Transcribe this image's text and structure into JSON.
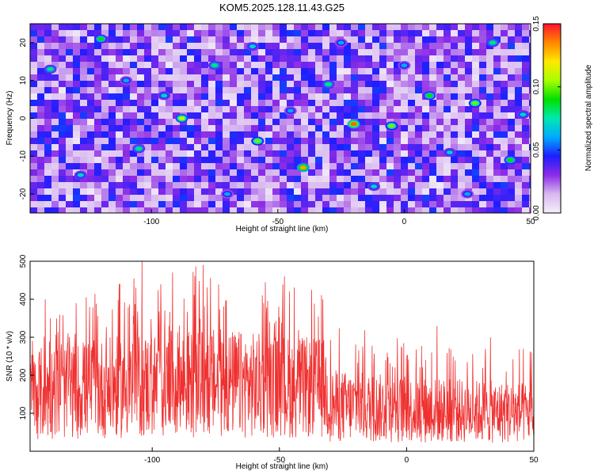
{
  "page_title": "KOM5.2025.128.11.43.G25",
  "chart_data": [
    {
      "type": "heatmap",
      "title": "KOM5.2025.128.11.43.G25",
      "xlabel": "Height of straight line (km)",
      "ylabel": "Frequency (Hz)",
      "xlim": [
        -148,
        50
      ],
      "ylim": [
        -25,
        25
      ],
      "xticks": [
        -100,
        -50,
        0,
        50
      ],
      "xtick_labels": [
        "-100",
        "-50",
        "0",
        "50"
      ],
      "yticks": [
        -20,
        -10,
        0,
        10,
        20
      ],
      "ytick_labels": [
        "-20",
        "-10",
        "0",
        "10",
        "20"
      ],
      "colorbar": {
        "label": "Normalized spectral amplitude",
        "range": [
          0.0,
          0.15
        ],
        "ticks": [
          0.0,
          0.05,
          0.1,
          0.15
        ],
        "tick_labels": [
          "0.00",
          "0.05",
          "0.10",
          "0.15"
        ],
        "colormap": [
          "#f4f0f8",
          "#d8b8f0",
          "#8c2be6",
          "#1e1eff",
          "#00aaff",
          "#00e8b0",
          "#00e000",
          "#a8ff00",
          "#ffe800",
          "#ff8800",
          "#ff1030"
        ]
      },
      "background_level": 0.025,
      "peaks": [
        {
          "x": -20,
          "y": -1.5,
          "v": 0.14
        },
        {
          "x": -40,
          "y": -13,
          "v": 0.13
        },
        {
          "x": -88,
          "y": 0,
          "v": 0.11
        },
        {
          "x": -5,
          "y": -2,
          "v": 0.1
        },
        {
          "x": 28,
          "y": 4,
          "v": 0.1
        },
        {
          "x": -58,
          "y": -6,
          "v": 0.1
        },
        {
          "x": 42,
          "y": -11,
          "v": 0.09
        },
        {
          "x": -120,
          "y": 21,
          "v": 0.09
        },
        {
          "x": 10,
          "y": 6,
          "v": 0.09
        },
        {
          "x": -140,
          "y": 13,
          "v": 0.08
        },
        {
          "x": -75,
          "y": 14,
          "v": 0.08
        },
        {
          "x": -105,
          "y": -8,
          "v": 0.08
        },
        {
          "x": -30,
          "y": 9,
          "v": 0.08
        },
        {
          "x": 35,
          "y": 20,
          "v": 0.08
        },
        {
          "x": -12,
          "y": -18,
          "v": 0.07
        },
        {
          "x": 47,
          "y": 1,
          "v": 0.07
        },
        {
          "x": -95,
          "y": 6,
          "v": 0.07
        },
        {
          "x": -60,
          "y": 19,
          "v": 0.07
        },
        {
          "x": 18,
          "y": -9,
          "v": 0.07
        },
        {
          "x": -128,
          "y": -15,
          "v": 0.07
        },
        {
          "x": -45,
          "y": 2,
          "v": 0.06
        },
        {
          "x": 0,
          "y": 14,
          "v": 0.06
        },
        {
          "x": -110,
          "y": 10,
          "v": 0.06
        },
        {
          "x": -70,
          "y": -20,
          "v": 0.06
        },
        {
          "x": 25,
          "y": -20,
          "v": 0.06
        },
        {
          "x": -25,
          "y": 20,
          "v": 0.06
        }
      ]
    },
    {
      "type": "line",
      "xlabel": "Height of straight line (km)",
      "ylabel": "SNR (10 * v/v)",
      "xlim": [
        -148,
        50
      ],
      "ylim": [
        0,
        500
      ],
      "xticks": [
        -100,
        -50,
        0,
        50
      ],
      "xtick_labels": [
        "-100",
        "-50",
        "0",
        "50"
      ],
      "yticks": [
        100,
        200,
        300,
        400,
        500
      ],
      "ytick_labels": [
        "100",
        "200",
        "300",
        "400",
        "500"
      ],
      "line_color": "#f03030",
      "n_points": 1500,
      "envelope": {
        "x": [
          -148,
          -100,
          -75,
          -50,
          -32,
          -30,
          0,
          50
        ],
        "mean": [
          150,
          175,
          180,
          170,
          165,
          120,
          110,
          100
        ],
        "max": [
          340,
          480,
          490,
          450,
          420,
          340,
          300,
          270
        ]
      },
      "peaks": [
        {
          "x": -104,
          "y": 500
        },
        {
          "x": -92,
          "y": 470
        },
        {
          "x": -80,
          "y": 490
        },
        {
          "x": -142,
          "y": 400
        },
        {
          "x": -126,
          "y": 405
        },
        {
          "x": -48,
          "y": 460
        },
        {
          "x": -33,
          "y": 400
        },
        {
          "x": 12,
          "y": 330
        },
        {
          "x": 33,
          "y": 300
        }
      ]
    }
  ]
}
